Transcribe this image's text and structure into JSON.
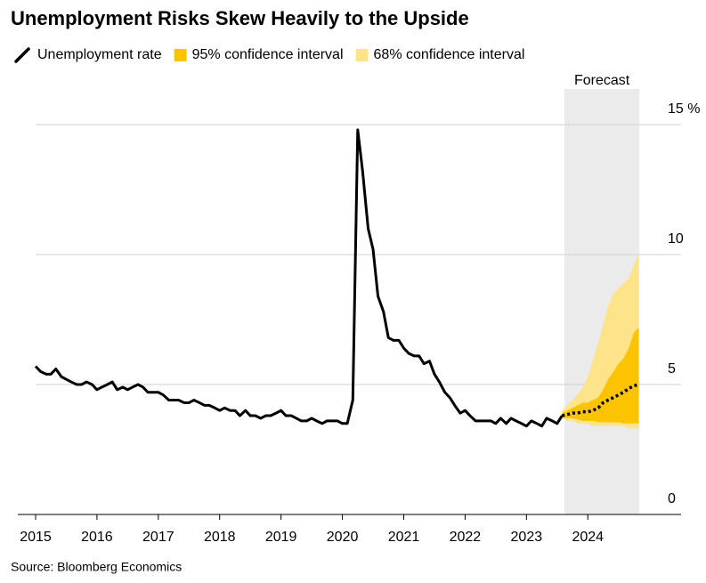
{
  "chart_data": {
    "type": "line",
    "title": "Unemployment Risks Skew Heavily to the Upside",
    "source": "Source: Bloomberg Economics",
    "xlim": [
      2014.71,
      2025.52
    ],
    "xticks": [
      2015,
      2016,
      2017,
      2018,
      2019,
      2020,
      2021,
      2022,
      2023,
      2024
    ],
    "ylim": [
      0,
      15
    ],
    "yticks": [
      0,
      5,
      10,
      {
        "value": 15,
        "label": "15 %"
      }
    ],
    "grid": true,
    "series": [
      {
        "name": "Unemployment rate",
        "color": "#000000",
        "x": [
          2015,
          2015.08,
          2015.17,
          2015.25,
          2015.33,
          2015.42,
          2015.5,
          2015.58,
          2015.67,
          2015.75,
          2015.83,
          2015.92,
          2016,
          2016.08,
          2016.17,
          2016.25,
          2016.33,
          2016.42,
          2016.5,
          2016.58,
          2016.67,
          2016.75,
          2016.83,
          2016.92,
          2017,
          2017.08,
          2017.17,
          2017.25,
          2017.33,
          2017.42,
          2017.5,
          2017.58,
          2017.67,
          2017.75,
          2017.83,
          2017.92,
          2018,
          2018.08,
          2018.17,
          2018.25,
          2018.33,
          2018.42,
          2018.5,
          2018.58,
          2018.67,
          2018.75,
          2018.83,
          2018.92,
          2019,
          2019.08,
          2019.17,
          2019.25,
          2019.33,
          2019.42,
          2019.5,
          2019.58,
          2019.67,
          2019.75,
          2019.83,
          2019.92,
          2020,
          2020.08,
          2020.17,
          2020.25,
          2020.33,
          2020.42,
          2020.5,
          2020.58,
          2020.67,
          2020.75,
          2020.83,
          2020.92,
          2021,
          2021.08,
          2021.17,
          2021.25,
          2021.33,
          2021.42,
          2021.5,
          2021.58,
          2021.67,
          2021.75,
          2021.83,
          2021.92,
          2022,
          2022.08,
          2022.17,
          2022.25,
          2022.33,
          2022.42,
          2022.5,
          2022.58,
          2022.67,
          2022.75,
          2022.83,
          2022.92,
          2023,
          2023.08,
          2023.17,
          2023.25,
          2023.33,
          2023.42,
          2023.5,
          2023.58
        ],
        "values": [
          5.7,
          5.5,
          5.4,
          5.4,
          5.6,
          5.3,
          5.2,
          5.1,
          5.0,
          5.0,
          5.1,
          5.0,
          4.8,
          4.9,
          5.0,
          5.1,
          4.8,
          4.9,
          4.8,
          4.9,
          5.0,
          4.9,
          4.7,
          4.7,
          4.7,
          4.6,
          4.4,
          4.4,
          4.4,
          4.3,
          4.3,
          4.4,
          4.3,
          4.2,
          4.2,
          4.1,
          4.0,
          4.1,
          4.0,
          4.0,
          3.8,
          4.0,
          3.8,
          3.8,
          3.7,
          3.8,
          3.8,
          3.9,
          4.0,
          3.8,
          3.8,
          3.7,
          3.6,
          3.6,
          3.7,
          3.6,
          3.5,
          3.6,
          3.6,
          3.6,
          3.5,
          3.5,
          4.4,
          14.8,
          13.2,
          11.0,
          10.2,
          8.4,
          7.8,
          6.8,
          6.7,
          6.7,
          6.4,
          6.2,
          6.1,
          6.1,
          5.8,
          5.9,
          5.4,
          5.1,
          4.7,
          4.5,
          4.2,
          3.9,
          4.0,
          3.8,
          3.6,
          3.6,
          3.6,
          3.6,
          3.5,
          3.7,
          3.5,
          3.7,
          3.6,
          3.5,
          3.4,
          3.6,
          3.5,
          3.4,
          3.7,
          3.6,
          3.5,
          3.8
        ]
      }
    ],
    "forecast_region": {
      "label": "Forecast",
      "xlim": [
        2023.62,
        2024.84
      ],
      "color": "#ebebeb"
    },
    "forecast": {
      "color": "#000000",
      "x": [
        2023.58,
        2023.67,
        2023.75,
        2023.83,
        2023.92,
        2024,
        2024.08,
        2024.17,
        2024.25,
        2024.33,
        2024.42,
        2024.5,
        2024.58,
        2024.67,
        2024.75,
        2024.83
      ],
      "values": [
        3.8,
        3.85,
        3.9,
        3.9,
        3.95,
        3.95,
        4.0,
        4.1,
        4.3,
        4.4,
        4.5,
        4.6,
        4.7,
        4.85,
        4.95,
        5.0
      ]
    },
    "bands": [
      {
        "name": "95% confidence interval",
        "color": "#fbc300",
        "lower": [
          3.75,
          3.7,
          3.7,
          3.65,
          3.6,
          3.6,
          3.6,
          3.55,
          3.55,
          3.55,
          3.55,
          3.55,
          3.5,
          3.5,
          3.5,
          3.5
        ],
        "upper": [
          3.9,
          4.0,
          4.1,
          4.2,
          4.3,
          4.3,
          4.4,
          4.5,
          4.8,
          5.2,
          5.5,
          5.8,
          6.0,
          6.4,
          7.0,
          7.2
        ]
      },
      {
        "name": "68% confidence interval",
        "color": "#fde38a",
        "lower": [
          3.7,
          3.6,
          3.6,
          3.5,
          3.5,
          3.5,
          3.4,
          3.4,
          3.4,
          3.4,
          3.4,
          3.4,
          3.4,
          3.3,
          3.3,
          3.3
        ],
        "upper": [
          4.0,
          4.2,
          4.4,
          4.6,
          4.9,
          5.3,
          5.9,
          6.6,
          7.3,
          8.0,
          8.5,
          8.7,
          8.9,
          9.1,
          9.6,
          10.0
        ]
      }
    ]
  }
}
